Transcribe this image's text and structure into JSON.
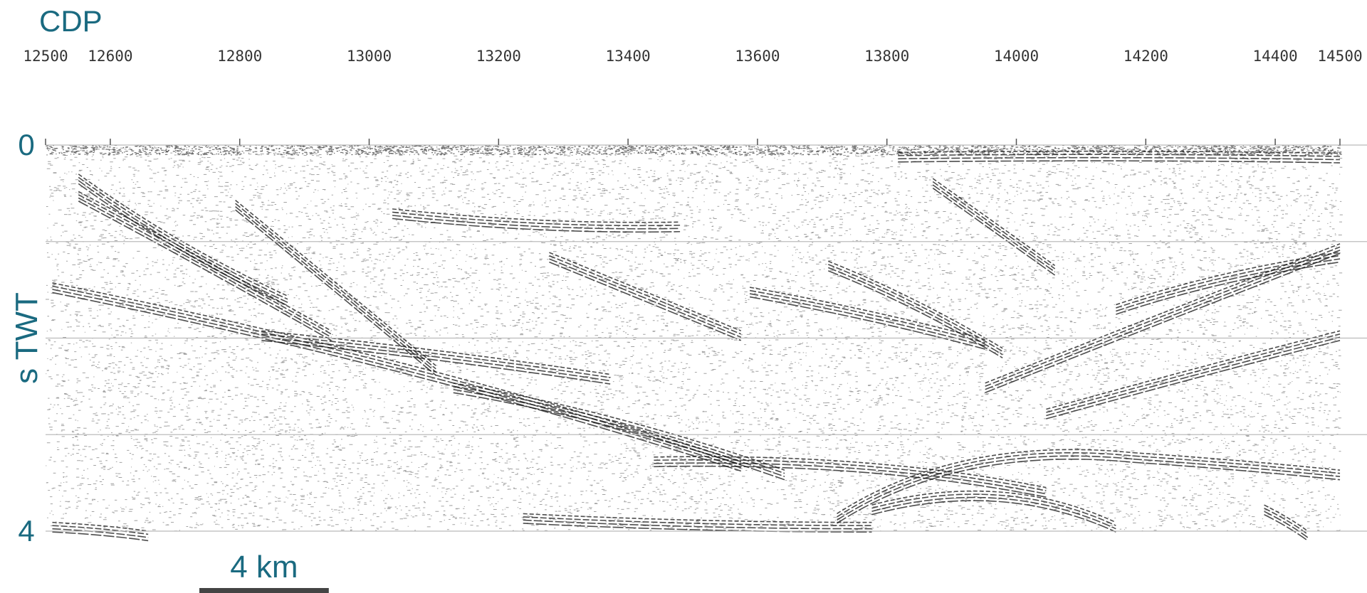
{
  "chart_data": {
    "type": "seismic",
    "x_label": "CDP",
    "y_label": "s TWT",
    "xlim": [
      12500,
      14500
    ],
    "xticks": [
      12500,
      12600,
      12800,
      13000,
      13200,
      13400,
      13600,
      13800,
      14000,
      14200,
      14400,
      14500
    ],
    "ylim": [
      0,
      4
    ],
    "yticks": [
      0,
      4
    ],
    "ygrid": [
      1,
      2,
      3
    ],
    "y_inverted": true,
    "color": "#1a6a80",
    "scale_bar": {
      "label": "4 km",
      "length": 200
    }
  }
}
